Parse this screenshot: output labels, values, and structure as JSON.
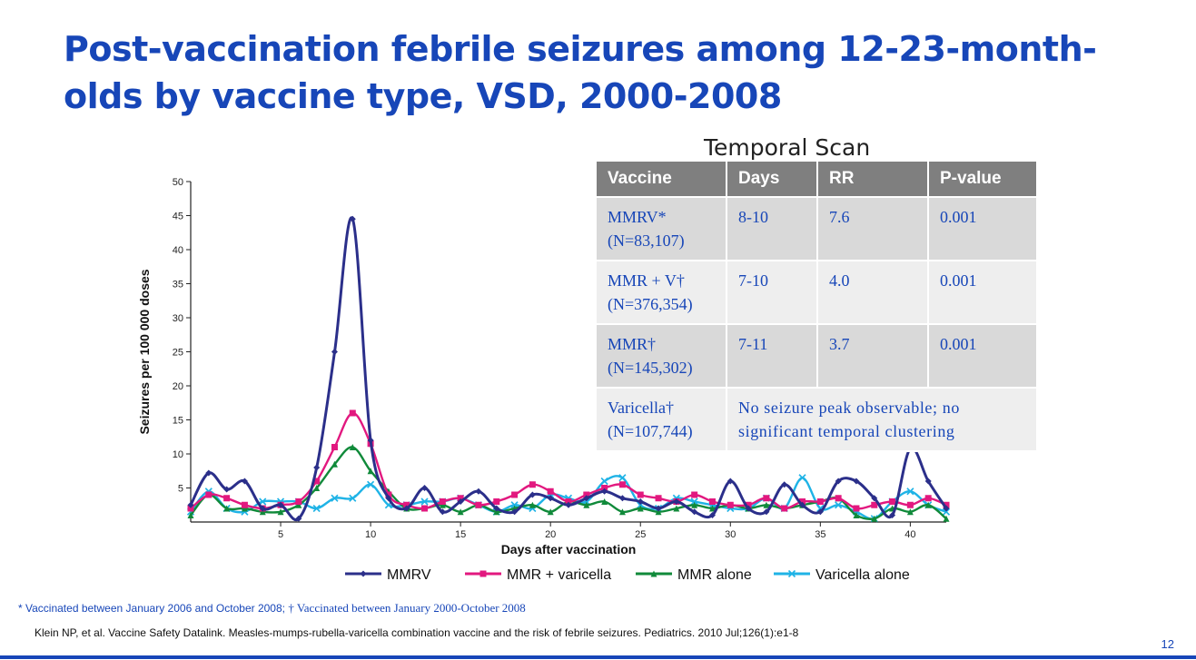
{
  "slide": {
    "title": "Post-vaccination febrile seizures among 12-23-month-olds by vaccine type, VSD, 2000-2008",
    "footnote_star": "* Vaccinated between January 2006 and October 2008;",
    "footnote_dagger": "† Vaccinated between January 2000-October 2008",
    "citation": "Klein NP, et al. Vaccine Safety Datalink. Measles-mumps-rubella-varicella combination vaccine and the risk of febrile seizures. Pediatrics. 2010 Jul;126(1):e1-8",
    "page_number": "12"
  },
  "table": {
    "caption": "Temporal Scan",
    "headers": [
      "Vaccine",
      "Days",
      "RR",
      "P-value"
    ],
    "rows": [
      {
        "vaccine": "MMRV*",
        "n": "(N=83,107)",
        "days": "8-10",
        "rr": "7.6",
        "p": "0.001"
      },
      {
        "vaccine": "MMR + V†",
        "n": "(N=376,354)",
        "days": "7-10",
        "rr": "4.0",
        "p": "0.001"
      },
      {
        "vaccine": "MMR†",
        "n": "(N=145,302)",
        "days": "7-11",
        "rr": "3.7",
        "p": "0.001"
      },
      {
        "vaccine": "Varicella†",
        "n": "(N=107,744)",
        "note": "No seizure peak observable; no significant temporal clustering"
      }
    ]
  },
  "chart_data": {
    "type": "line",
    "title": "",
    "xlabel": "Days after vaccination",
    "ylabel": "Seizures per 100 000 doses",
    "xlim": [
      0,
      42
    ],
    "ylim": [
      0,
      50
    ],
    "xticks": [
      5,
      10,
      15,
      20,
      25,
      30,
      35,
      40
    ],
    "yticks": [
      5,
      10,
      15,
      20,
      25,
      30,
      35,
      40,
      45,
      50
    ],
    "grid": false,
    "legend": "bottom",
    "x": [
      0,
      1,
      2,
      3,
      4,
      5,
      6,
      7,
      8,
      9,
      10,
      11,
      12,
      13,
      14,
      15,
      16,
      17,
      18,
      19,
      20,
      21,
      22,
      23,
      24,
      25,
      26,
      27,
      28,
      29,
      30,
      31,
      32,
      33,
      34,
      35,
      36,
      37,
      38,
      39,
      40,
      41,
      42
    ],
    "series": [
      {
        "name": "MMRV",
        "color": "#2b2f8a",
        "marker": "diamond",
        "values": [
          2.5,
          7.2,
          4.8,
          6.0,
          2.0,
          2.5,
          0.5,
          8.0,
          25.0,
          44.5,
          12.0,
          3.5,
          2.0,
          5.0,
          1.5,
          3.0,
          4.5,
          2.0,
          1.5,
          4.0,
          3.5,
          2.5,
          3.5,
          4.5,
          3.5,
          3.0,
          2.0,
          3.0,
          1.5,
          1.0,
          6.0,
          2.0,
          1.5,
          5.5,
          2.5,
          1.5,
          6.0,
          6.0,
          3.5,
          1.0,
          10.8,
          6.0,
          2.0
        ]
      },
      {
        "name": "MMR + varicella",
        "color": "#e2187f",
        "marker": "square",
        "values": [
          2.0,
          4.0,
          3.5,
          2.5,
          2.0,
          2.5,
          3.0,
          6.0,
          11.0,
          16.0,
          11.5,
          4.0,
          2.5,
          2.0,
          3.0,
          3.5,
          2.5,
          3.0,
          4.0,
          5.5,
          4.5,
          3.0,
          4.0,
          5.0,
          5.5,
          4.0,
          3.5,
          3.0,
          4.0,
          3.0,
          2.5,
          2.5,
          3.5,
          2.0,
          3.0,
          3.0,
          3.5,
          2.0,
          2.5,
          3.0,
          2.5,
          3.5,
          2.5
        ]
      },
      {
        "name": "MMR alone",
        "color": "#108a3a",
        "marker": "triangle",
        "values": [
          1.0,
          4.0,
          2.0,
          2.0,
          1.5,
          1.5,
          2.5,
          5.0,
          8.5,
          11.0,
          7.5,
          4.5,
          2.0,
          2.0,
          2.5,
          1.5,
          2.5,
          1.5,
          2.0,
          2.5,
          1.5,
          3.0,
          2.5,
          3.0,
          1.5,
          2.0,
          1.5,
          2.0,
          2.5,
          2.0,
          2.5,
          2.0,
          2.5,
          2.0,
          2.5,
          3.0,
          3.5,
          1.0,
          0.5,
          2.0,
          1.5,
          2.5,
          0.5
        ]
      },
      {
        "name": "Varicella alone",
        "color": "#1fb3e6",
        "marker": "x",
        "values": [
          1.5,
          4.5,
          2.0,
          1.5,
          3.0,
          3.0,
          3.0,
          2.0,
          3.5,
          3.5,
          5.5,
          2.5,
          2.5,
          3.0,
          3.0,
          3.5,
          2.5,
          1.5,
          2.5,
          2.0,
          4.0,
          3.5,
          3.0,
          6.0,
          6.5,
          2.5,
          2.0,
          3.5,
          3.0,
          2.5,
          2.0,
          2.0,
          3.5,
          2.0,
          6.5,
          2.0,
          2.5,
          1.5,
          0.5,
          3.0,
          4.5,
          2.5,
          1.5
        ]
      }
    ]
  }
}
